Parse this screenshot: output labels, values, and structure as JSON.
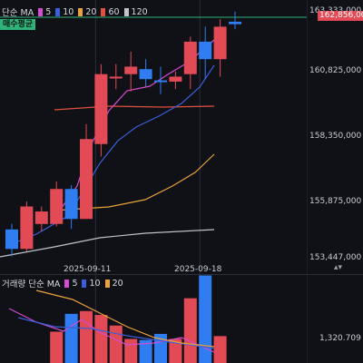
{
  "price_legend": {
    "label": "단순 MA",
    "periods": [
      {
        "label": "5",
        "color": "#d44cd0"
      },
      {
        "label": "10",
        "color": "#3a5fd9"
      },
      {
        "label": "20",
        "color": "#e8a23a"
      },
      {
        "label": "60",
        "color": "#e0503c"
      },
      {
        "label": "120",
        "color": "#bfc3ca"
      }
    ]
  },
  "avg_price_badge": "매수평균",
  "price_axis": [
    "163,333,000",
    "160,825,000",
    "158,350,000",
    "155,875,000",
    "153,447,000"
  ],
  "current_price": "162,856,000",
  "date_labels": [
    "2025-09-11",
    "2025-09-18"
  ],
  "volume_legend": {
    "label": "거래량 단순 MA",
    "periods": [
      {
        "label": "5",
        "color": "#d44cd0"
      },
      {
        "label": "10",
        "color": "#3a5fd9"
      },
      {
        "label": "20",
        "color": "#e8a23a"
      }
    ]
  },
  "volume_axis_label": "1,320.709",
  "colors": {
    "up": "#e24a55",
    "down": "#2f7df0",
    "background": "#0f1117",
    "avg_line": "#2fb37a"
  },
  "candles": [
    {
      "o": 154580000,
      "h": 154810000,
      "l": 153500000,
      "c": 153800000
    },
    {
      "o": 153800000,
      "h": 155700000,
      "l": 153700000,
      "c": 155500000
    },
    {
      "o": 154800000,
      "h": 155500000,
      "l": 154500000,
      "c": 155300000
    },
    {
      "o": 154800000,
      "h": 156500000,
      "l": 154700000,
      "c": 156200000
    },
    {
      "o": 156200000,
      "h": 156350000,
      "l": 154600000,
      "c": 155000000
    },
    {
      "o": 155000000,
      "h": 158800000,
      "l": 155000000,
      "c": 158200000
    },
    {
      "o": 158000000,
      "h": 161200000,
      "l": 157500000,
      "c": 160800000
    },
    {
      "o": 160700000,
      "h": 161200000,
      "l": 160200000,
      "c": 160700000
    },
    {
      "o": 160800000,
      "h": 161700000,
      "l": 160100000,
      "c": 161100000
    },
    {
      "o": 161000000,
      "h": 161400000,
      "l": 160300000,
      "c": 160600000
    },
    {
      "o": 160550000,
      "h": 161100000,
      "l": 160000000,
      "c": 160500000
    },
    {
      "o": 160500000,
      "h": 160900000,
      "l": 160200000,
      "c": 160700000
    },
    {
      "o": 160800000,
      "h": 162300000,
      "l": 160200000,
      "c": 162100000
    },
    {
      "o": 162100000,
      "h": 162700000,
      "l": 160600000,
      "c": 161400000
    },
    {
      "o": 161400000,
      "h": 163000000,
      "l": 160700000,
      "c": 162700000
    },
    {
      "o": 162900000,
      "h": 163300000,
      "l": 162600000,
      "c": 162800000
    }
  ],
  "volumes": [
    null,
    null,
    null,
    1460,
    1780,
    1830,
    1760,
    1570,
    1330,
    1310,
    1420,
    1330,
    2060,
    2470,
    1380,
    null
  ]
}
